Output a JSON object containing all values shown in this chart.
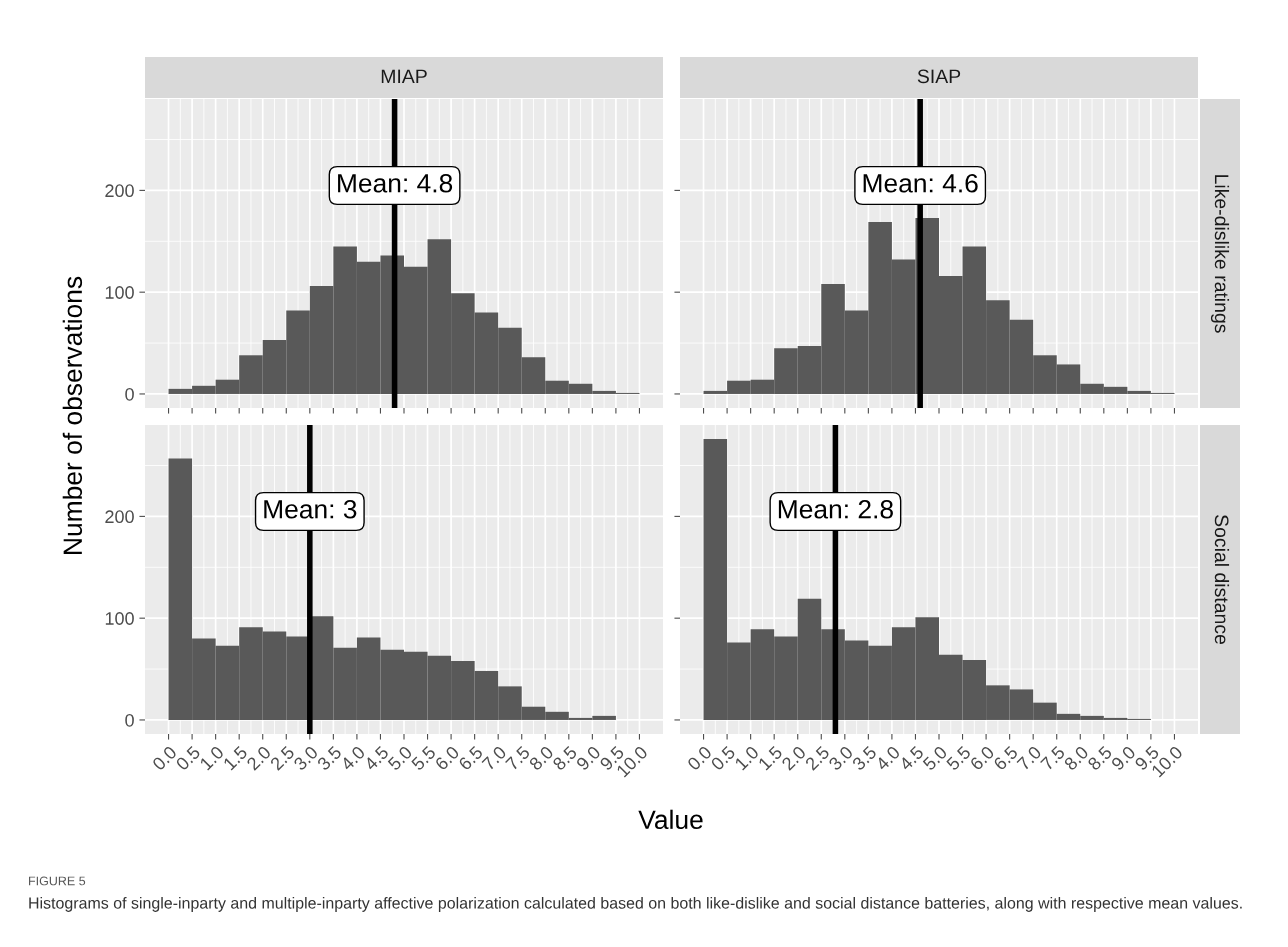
{
  "chart_data": [
    {
      "type": "histogram",
      "title": "MIAP",
      "ylabel": "Number of observations",
      "annotations": [
        "FIGURE 5",
        "Histograms of single-inparty and multiple-inparty affective polarization calculated based on both like-dislike and social distance batteries, along with respective mean values."
      ],
      "bins": [
        0.0,
        0.5,
        1.0,
        1.5,
        2.0,
        2.5,
        3.0,
        3.5,
        4.0,
        4.5,
        5.0,
        5.5,
        6.0,
        6.5,
        7.0,
        7.5,
        8.0,
        8.5,
        9.0,
        9.5,
        10.0
      ],
      "values": [
        5,
        8,
        14,
        38,
        53,
        82,
        106,
        145,
        130,
        136,
        125,
        152,
        99,
        80,
        65,
        36,
        13,
        10,
        3,
        1
      ],
      "color": "#595959",
      "xlim": [
        -0.5,
        10.5
      ],
      "ylim": [
        -13.8,
        289.8
      ],
      "xticks": [
        {
          "value": 0,
          "label": null
        },
        {
          "value": 0.5,
          "label": null
        },
        {
          "value": 1,
          "label": null
        },
        {
          "value": 1.5,
          "label": null
        },
        {
          "value": 2,
          "label": null
        },
        {
          "value": 2.5,
          "label": null
        },
        {
          "value": 3,
          "label": null
        },
        {
          "value": 3.5,
          "label": null
        },
        {
          "value": 4,
          "label": null
        },
        {
          "value": 4.5,
          "label": null
        },
        {
          "value": 5,
          "label": null
        },
        {
          "value": 5.5,
          "label": null
        },
        {
          "value": 6,
          "label": null
        },
        {
          "value": 6.5,
          "label": null
        },
        {
          "value": 7,
          "label": null
        },
        {
          "value": 7.5,
          "label": null
        },
        {
          "value": 8,
          "label": null
        },
        {
          "value": 8.5,
          "label": null
        },
        {
          "value": 9,
          "label": null
        },
        {
          "value": 9.5,
          "label": null
        },
        {
          "value": 10,
          "label": null
        }
      ],
      "yticks": [
        0,
        100,
        200
      ],
      "tick_labels": "y",
      "grid": true,
      "ref_lines": [
        {
          "axis": "x",
          "value": 4.8,
          "label": "Mean: 4.8",
          "color": "#000000"
        }
      ]
    },
    {
      "type": "histogram",
      "title": "SIAP",
      "y2label": "Like-dislike ratings",
      "bins": [
        0.0,
        0.5,
        1.0,
        1.5,
        2.0,
        2.5,
        3.0,
        3.5,
        4.0,
        4.5,
        5.0,
        5.5,
        6.0,
        6.5,
        7.0,
        7.5,
        8.0,
        8.5,
        9.0,
        9.5,
        10.0
      ],
      "values": [
        3,
        13,
        14,
        45,
        47,
        108,
        82,
        169,
        132,
        173,
        116,
        145,
        92,
        73,
        38,
        29,
        10,
        7,
        3,
        1
      ],
      "color": "#595959",
      "xlim": [
        -0.5,
        10.5
      ],
      "ylim": [
        -13.8,
        289.8
      ],
      "xticks": [
        {
          "value": 0,
          "label": null
        },
        {
          "value": 0.5,
          "label": null
        },
        {
          "value": 1,
          "label": null
        },
        {
          "value": 1.5,
          "label": null
        },
        {
          "value": 2,
          "label": null
        },
        {
          "value": 2.5,
          "label": null
        },
        {
          "value": 3,
          "label": null
        },
        {
          "value": 3.5,
          "label": null
        },
        {
          "value": 4,
          "label": null
        },
        {
          "value": 4.5,
          "label": null
        },
        {
          "value": 5,
          "label": null
        },
        {
          "value": 5.5,
          "label": null
        },
        {
          "value": 6,
          "label": null
        },
        {
          "value": 6.5,
          "label": null
        },
        {
          "value": 7,
          "label": null
        },
        {
          "value": 7.5,
          "label": null
        },
        {
          "value": 8,
          "label": null
        },
        {
          "value": 8.5,
          "label": null
        },
        {
          "value": 9,
          "label": null
        },
        {
          "value": 9.5,
          "label": null
        },
        {
          "value": 10,
          "label": null
        }
      ],
      "yticks": [
        0,
        100,
        200
      ],
      "tick_labels": false,
      "grid": true,
      "ref_lines": [
        {
          "axis": "x",
          "value": 4.6,
          "label": "Mean: 4.6",
          "color": "#000000"
        }
      ]
    },
    {
      "type": "histogram",
      "xlabel": "Value",
      "bins": [
        0.0,
        0.5,
        1.0,
        1.5,
        2.0,
        2.5,
        3.0,
        3.5,
        4.0,
        4.5,
        5.0,
        5.5,
        6.0,
        6.5,
        7.0,
        7.5,
        8.0,
        8.5,
        9.0,
        9.5,
        10.0
      ],
      "values": [
        257,
        80,
        73,
        91,
        87,
        82,
        102,
        71,
        81,
        69,
        67,
        63,
        58,
        48,
        33,
        13,
        8,
        2,
        4,
        0
      ],
      "color": "#595959",
      "xlim": [
        -0.5,
        10.5
      ],
      "ylim": [
        -13.8,
        289.8
      ],
      "xticks": [
        {
          "value": 0,
          "label": "0.0"
        },
        {
          "value": 0.5,
          "label": "0.5"
        },
        {
          "value": 1,
          "label": "1.0"
        },
        {
          "value": 1.5,
          "label": "1.5"
        },
        {
          "value": 2,
          "label": "2.0"
        },
        {
          "value": 2.5,
          "label": "2.5"
        },
        {
          "value": 3,
          "label": "3.0"
        },
        {
          "value": 3.5,
          "label": "3.5"
        },
        {
          "value": 4,
          "label": "4.0"
        },
        {
          "value": 4.5,
          "label": "4.5"
        },
        {
          "value": 5,
          "label": "5.0"
        },
        {
          "value": 5.5,
          "label": "5.5"
        },
        {
          "value": 6,
          "label": "6.0"
        },
        {
          "value": 6.5,
          "label": "6.5"
        },
        {
          "value": 7,
          "label": "7.0"
        },
        {
          "value": 7.5,
          "label": "7.5"
        },
        {
          "value": 8,
          "label": "8.0"
        },
        {
          "value": 8.5,
          "label": "8.5"
        },
        {
          "value": 9,
          "label": "9.0"
        },
        {
          "value": 9.5,
          "label": "9.5"
        },
        {
          "value": 10,
          "label": "10.0"
        }
      ],
      "yticks": [
        0,
        100,
        200
      ],
      "grid": true,
      "ref_lines": [
        {
          "axis": "x",
          "value": 3.0,
          "label": "Mean: 3",
          "color": "#000000"
        }
      ]
    },
    {
      "type": "histogram",
      "y2label": "Social distance",
      "bins": [
        0.0,
        0.5,
        1.0,
        1.5,
        2.0,
        2.5,
        3.0,
        3.5,
        4.0,
        4.5,
        5.0,
        5.5,
        6.0,
        6.5,
        7.0,
        7.5,
        8.0,
        8.5,
        9.0,
        9.5,
        10.0
      ],
      "values": [
        276,
        76,
        89,
        82,
        119,
        89,
        78,
        73,
        91,
        101,
        64,
        59,
        34,
        30,
        17,
        6,
        4,
        2,
        1,
        0
      ],
      "color": "#595959",
      "xlim": [
        -0.5,
        10.5
      ],
      "ylim": [
        -13.8,
        289.8
      ],
      "xticks": [
        {
          "value": 0,
          "label": "0.0"
        },
        {
          "value": 0.5,
          "label": "0.5"
        },
        {
          "value": 1,
          "label": "1.0"
        },
        {
          "value": 1.5,
          "label": "1.5"
        },
        {
          "value": 2,
          "label": "2.0"
        },
        {
          "value": 2.5,
          "label": "2.5"
        },
        {
          "value": 3,
          "label": "3.0"
        },
        {
          "value": 3.5,
          "label": "3.5"
        },
        {
          "value": 4,
          "label": "4.0"
        },
        {
          "value": 4.5,
          "label": "4.5"
        },
        {
          "value": 5,
          "label": "5.0"
        },
        {
          "value": 5.5,
          "label": "5.5"
        },
        {
          "value": 6,
          "label": "6.0"
        },
        {
          "value": 6.5,
          "label": "6.5"
        },
        {
          "value": 7,
          "label": "7.0"
        },
        {
          "value": 7.5,
          "label": "7.5"
        },
        {
          "value": 8,
          "label": "8.0"
        },
        {
          "value": 8.5,
          "label": "8.5"
        },
        {
          "value": 9,
          "label": "9.0"
        },
        {
          "value": 9.5,
          "label": "9.5"
        },
        {
          "value": 10,
          "label": "10.0"
        }
      ],
      "yticks": [
        0,
        100,
        200
      ],
      "tick_labels": "x",
      "grid": true,
      "ref_lines": [
        {
          "axis": "x",
          "value": 2.8,
          "label": "Mean: 2.8",
          "color": "#000000"
        }
      ]
    }
  ]
}
